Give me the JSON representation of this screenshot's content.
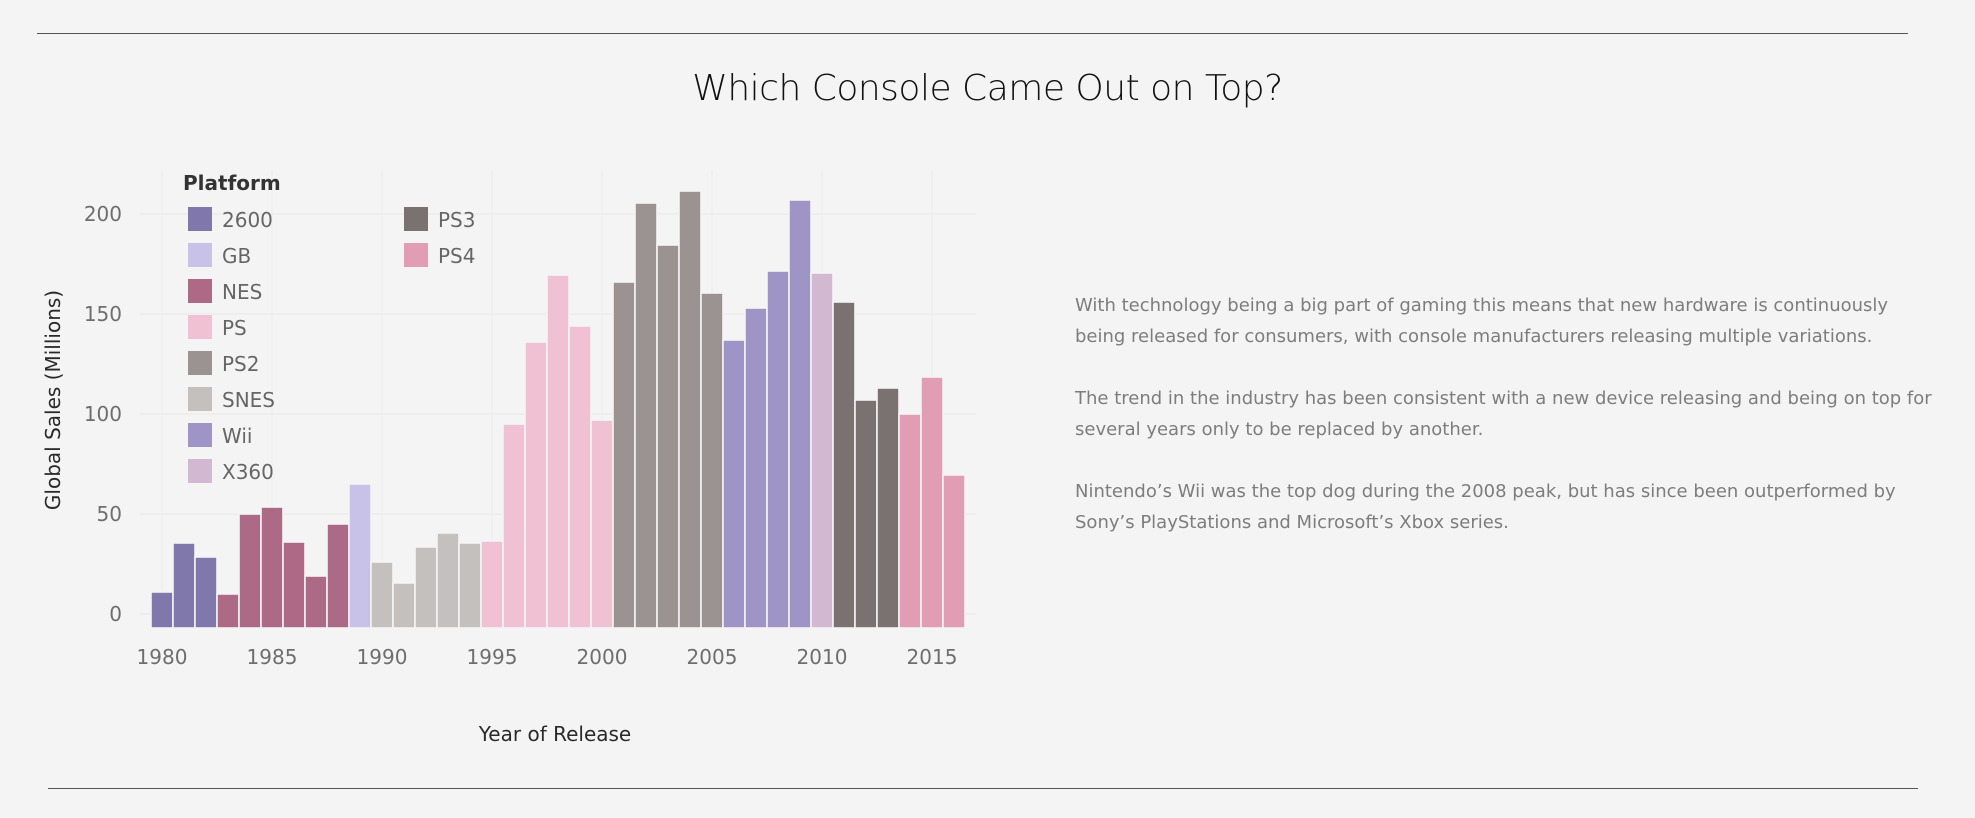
{
  "title": "Which Console Came Out on Top?",
  "paragraphs": [
    "With technology being a big part of gaming this means that new hardware is continuously being released for consumers, with console manufacturers releasing multiple variations.",
    "The trend in the industry has been consistent with a new device releasing and being on top for several years only to be replaced by another.",
    "Nintendo’s Wii was the top dog during the 2008 peak, but has since been outperformed by Sony’s PlayStations and Microsoft’s Xbox series."
  ],
  "chart_data": {
    "type": "bar",
    "xlabel": "Year of Release",
    "ylabel": "Global Sales (Millions)",
    "ylim": [
      -7,
      222
    ],
    "xlim": [
      1979,
      2017
    ],
    "x_ticks": [
      1980,
      1985,
      1990,
      1995,
      2000,
      2005,
      2010,
      2015
    ],
    "y_ticks": [
      0,
      50,
      100,
      150,
      200
    ],
    "grid": true,
    "legend": {
      "title": "Platform",
      "position": "top-left",
      "items": [
        {
          "label": "2600",
          "color": "#8077aa"
        },
        {
          "label": "GB",
          "color": "#c9c2e8"
        },
        {
          "label": "NES",
          "color": "#ad6a87"
        },
        {
          "label": "PS",
          "color": "#efc1d3"
        },
        {
          "label": "PS2",
          "color": "#9b9391"
        },
        {
          "label": "SNES",
          "color": "#c3c0be"
        },
        {
          "label": "Wii",
          "color": "#9e94c6"
        },
        {
          "label": "X360",
          "color": "#d3b8d1"
        },
        {
          "label": "PS3",
          "color": "#7a7270"
        },
        {
          "label": "PS4",
          "color": "#e19db3"
        }
      ]
    },
    "bars": [
      {
        "year": 1980,
        "platform": "2600",
        "value": 11
      },
      {
        "year": 1981,
        "platform": "2600",
        "value": 35.5
      },
      {
        "year": 1982,
        "platform": "2600",
        "value": 28.5
      },
      {
        "year": 1983,
        "platform": "NES",
        "value": 10
      },
      {
        "year": 1984,
        "platform": "NES",
        "value": 50
      },
      {
        "year": 1985,
        "platform": "NES",
        "value": 53.5
      },
      {
        "year": 1986,
        "platform": "NES",
        "value": 36
      },
      {
        "year": 1987,
        "platform": "NES",
        "value": 19
      },
      {
        "year": 1988,
        "platform": "NES",
        "value": 45
      },
      {
        "year": 1989,
        "platform": "GB",
        "value": 65
      },
      {
        "year": 1990,
        "platform": "SNES",
        "value": 26
      },
      {
        "year": 1991,
        "platform": "SNES",
        "value": 15.5
      },
      {
        "year": 1992,
        "platform": "SNES",
        "value": 33.5
      },
      {
        "year": 1993,
        "platform": "SNES",
        "value": 40.5
      },
      {
        "year": 1994,
        "platform": "SNES",
        "value": 35.5
      },
      {
        "year": 1995,
        "platform": "PS",
        "value": 36.5
      },
      {
        "year": 1996,
        "platform": "PS",
        "value": 95
      },
      {
        "year": 1997,
        "platform": "PS",
        "value": 136
      },
      {
        "year": 1998,
        "platform": "PS",
        "value": 169.5
      },
      {
        "year": 1999,
        "platform": "PS",
        "value": 144
      },
      {
        "year": 2000,
        "platform": "PS",
        "value": 97
      },
      {
        "year": 2001,
        "platform": "PS2",
        "value": 166
      },
      {
        "year": 2002,
        "platform": "PS2",
        "value": 205.5
      },
      {
        "year": 2003,
        "platform": "PS2",
        "value": 184.5
      },
      {
        "year": 2004,
        "platform": "PS2",
        "value": 211.5
      },
      {
        "year": 2005,
        "platform": "PS2",
        "value": 160.5
      },
      {
        "year": 2006,
        "platform": "Wii",
        "value": 137
      },
      {
        "year": 2007,
        "platform": "Wii",
        "value": 153
      },
      {
        "year": 2008,
        "platform": "Wii",
        "value": 171.5
      },
      {
        "year": 2009,
        "platform": "Wii",
        "value": 207
      },
      {
        "year": 2010,
        "platform": "X360",
        "value": 170.5
      },
      {
        "year": 2011,
        "platform": "PS3",
        "value": 156
      },
      {
        "year": 2012,
        "platform": "PS3",
        "value": 107
      },
      {
        "year": 2013,
        "platform": "PS3",
        "value": 113
      },
      {
        "year": 2014,
        "platform": "PS4",
        "value": 100
      },
      {
        "year": 2015,
        "platform": "PS4",
        "value": 118.5
      },
      {
        "year": 2016,
        "platform": "PS4",
        "value": 69.5
      }
    ]
  }
}
